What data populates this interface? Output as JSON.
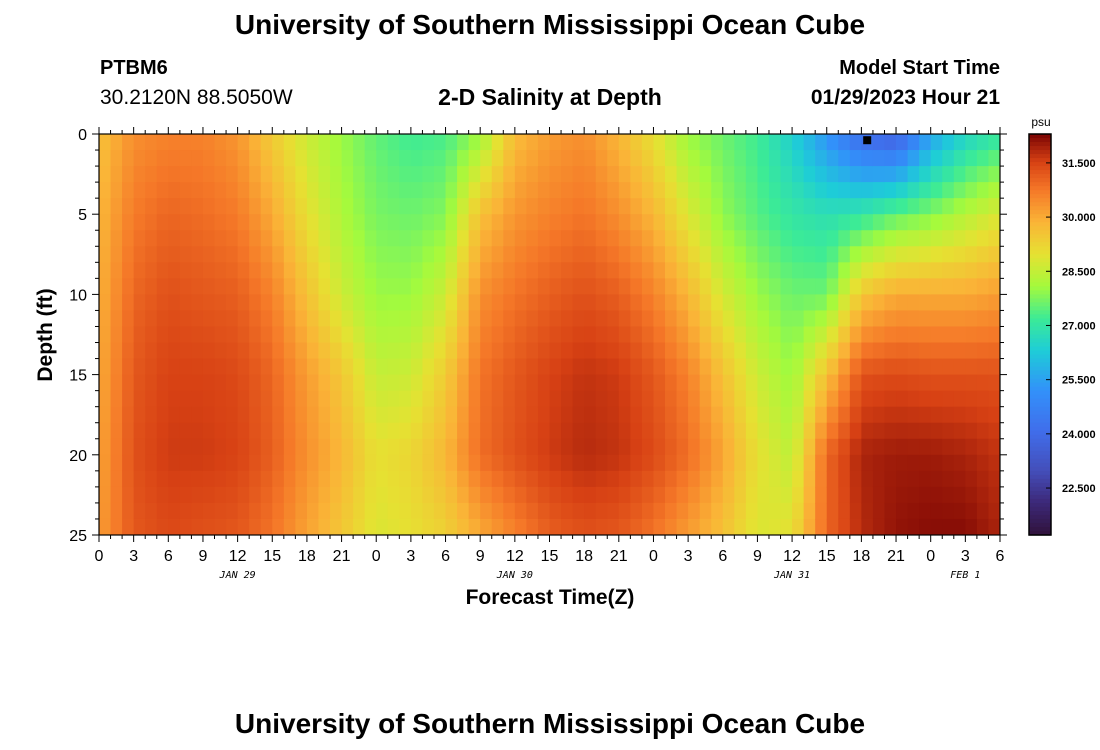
{
  "header": {
    "title": "University of Southern Mississippi Ocean Cube",
    "station_id": "PTBM6",
    "coordinates": "30.2120N  88.5050W",
    "plot_title": "2-D Salinity at Depth",
    "model_start_label": "Model Start Time",
    "model_start_value": "01/29/2023 Hour 21"
  },
  "footer": {
    "title": "University of Southern Mississippi Ocean Cube"
  },
  "chart_data": {
    "type": "heatmap",
    "title": "2-D Salinity at Depth",
    "xlabel": "Forecast Time(Z)",
    "ylabel": "Depth (ft)",
    "xlim_hours": [
      0,
      78
    ],
    "ylim": [
      0,
      25
    ],
    "y_ticks": [
      "0",
      "5",
      "10",
      "15",
      "20",
      "25"
    ],
    "x_ticks": [
      "0",
      "3",
      "6",
      "9",
      "12",
      "15",
      "18",
      "21",
      "0",
      "3",
      "6",
      "9",
      "12",
      "15",
      "18",
      "21",
      "0",
      "3",
      "6",
      "9",
      "12",
      "15",
      "18",
      "21",
      "0",
      "3",
      "6"
    ],
    "day_labels": [
      {
        "label": "JAN 29",
        "hour": 12
      },
      {
        "label": "JAN 30",
        "hour": 36
      },
      {
        "label": "JAN 31",
        "hour": 60
      },
      {
        "label": "FEB 1",
        "hour": 75
      }
    ],
    "colorbar": {
      "unit": "psu",
      "ticks": [
        "31.500",
        "30.000",
        "28.500",
        "27.000",
        "25.500",
        "24.000",
        "22.500"
      ],
      "tick_values": [
        31.5,
        30.0,
        28.5,
        27.0,
        25.5,
        24.0,
        22.5
      ],
      "range": [
        21.2,
        32.3
      ]
    },
    "marker": {
      "hour": 66.5,
      "depth": 0.2
    },
    "profiles": [
      {
        "hour": 0,
        "salinity": [
          29.6,
          29.8,
          29.9,
          30.0,
          30.1,
          30.2
        ]
      },
      {
        "hour": 3,
        "salinity": [
          30.4,
          30.7,
          31.0,
          31.2,
          31.3,
          31.2
        ]
      },
      {
        "hour": 6,
        "salinity": [
          30.6,
          31.0,
          31.3,
          31.5,
          31.6,
          31.4
        ]
      },
      {
        "hour": 9,
        "salinity": [
          30.6,
          30.9,
          31.2,
          31.5,
          31.6,
          31.3
        ]
      },
      {
        "hour": 12,
        "salinity": [
          30.3,
          30.7,
          31.1,
          31.4,
          31.5,
          31.2
        ]
      },
      {
        "hour": 15,
        "salinity": [
          29.4,
          30.0,
          30.6,
          31.0,
          31.1,
          30.8
        ]
      },
      {
        "hour": 18,
        "salinity": [
          28.6,
          29.0,
          29.6,
          30.2,
          30.4,
          30.1
        ]
      },
      {
        "hour": 21,
        "salinity": [
          28.0,
          28.2,
          28.6,
          29.5,
          29.8,
          29.5
        ]
      },
      {
        "hour": 24,
        "salinity": [
          27.5,
          27.7,
          28.0,
          28.5,
          29.0,
          28.8
        ]
      },
      {
        "hour": 27,
        "salinity": [
          27.2,
          27.6,
          28.0,
          28.6,
          29.2,
          29.0
        ]
      },
      {
        "hour": 30,
        "salinity": [
          27.3,
          27.8,
          28.6,
          29.4,
          29.8,
          29.3
        ]
      },
      {
        "hour": 33,
        "salinity": [
          28.0,
          29.6,
          30.4,
          30.8,
          30.9,
          30.0
        ]
      },
      {
        "hour": 36,
        "salinity": [
          29.7,
          30.3,
          30.8,
          31.2,
          31.3,
          30.6
        ]
      },
      {
        "hour": 39,
        "salinity": [
          30.2,
          30.6,
          31.1,
          31.5,
          31.6,
          31.1
        ]
      },
      {
        "hour": 42,
        "salinity": [
          30.4,
          30.8,
          31.3,
          31.7,
          31.8,
          31.3
        ]
      },
      {
        "hour": 45,
        "salinity": [
          29.8,
          30.4,
          31.1,
          31.6,
          31.7,
          31.2
        ]
      },
      {
        "hour": 48,
        "salinity": [
          29.0,
          29.8,
          30.6,
          31.2,
          31.4,
          30.8
        ]
      },
      {
        "hour": 51,
        "salinity": [
          28.0,
          28.8,
          29.8,
          30.6,
          30.9,
          30.2
        ]
      },
      {
        "hour": 54,
        "salinity": [
          27.6,
          27.9,
          28.7,
          29.6,
          30.1,
          29.6
        ]
      },
      {
        "hour": 57,
        "salinity": [
          27.2,
          27.4,
          28.0,
          28.6,
          29.0,
          28.8
        ]
      },
      {
        "hour": 60,
        "salinity": [
          26.4,
          27.0,
          27.6,
          28.0,
          28.4,
          29.0
        ]
      },
      {
        "hour": 63,
        "salinity": [
          25.2,
          26.8,
          27.6,
          29.6,
          31.0,
          31.0
        ]
      },
      {
        "hour": 66,
        "salinity": [
          24.0,
          27.0,
          29.5,
          31.3,
          31.9,
          31.8
        ]
      },
      {
        "hour": 69,
        "salinity": [
          23.6,
          27.5,
          30.0,
          31.4,
          32.0,
          32.1
        ]
      },
      {
        "hour": 72,
        "salinity": [
          25.5,
          27.8,
          30.0,
          31.3,
          32.0,
          32.2
        ]
      },
      {
        "hour": 75,
        "salinity": [
          26.5,
          28.3,
          30.0,
          31.3,
          31.9,
          32.2
        ]
      },
      {
        "hour": 78,
        "salinity": [
          27.0,
          28.8,
          30.2,
          31.3,
          31.7,
          31.9
        ]
      }
    ]
  }
}
